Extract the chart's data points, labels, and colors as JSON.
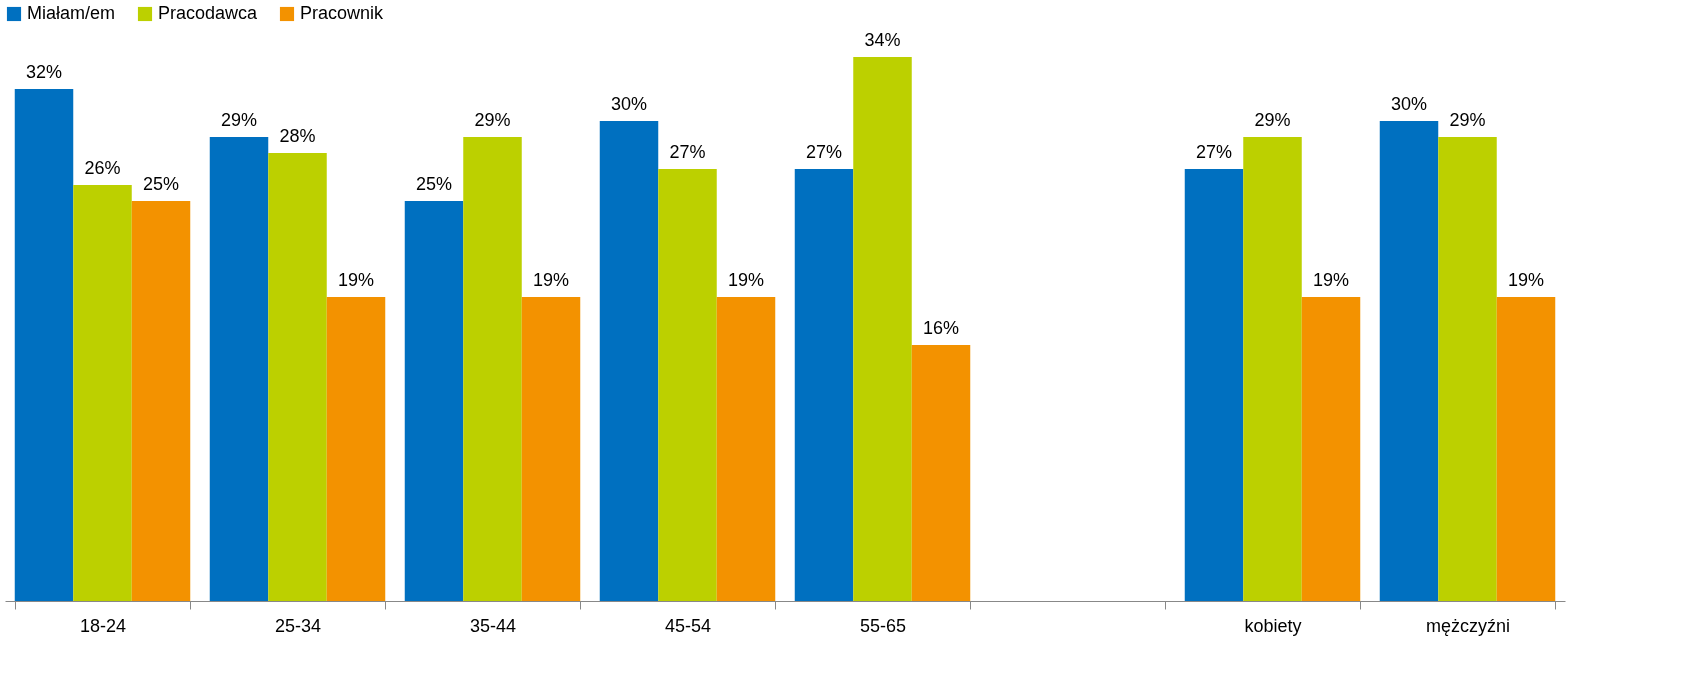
{
  "chart_data": {
    "type": "bar",
    "categories": [
      "18-24",
      "25-34",
      "35-44",
      "45-54",
      "55-65",
      null,
      "kobiety",
      "mężczyźni"
    ],
    "series": [
      {
        "name": "Miałam/em",
        "color": "#0070c0",
        "values": [
          32,
          29,
          25,
          30,
          27,
          null,
          27,
          30
        ],
        "value_labels": [
          "32%",
          "29%",
          "25%",
          "30%",
          "27%",
          null,
          "27%",
          "30%"
        ]
      },
      {
        "name": "Pracodawca",
        "color": "#bcd000",
        "values": [
          26,
          28,
          29,
          27,
          34,
          null,
          29,
          29
        ],
        "value_labels": [
          "26%",
          "28%",
          "29%",
          "27%",
          "34%",
          null,
          "29%",
          "29%"
        ]
      },
      {
        "name": "Pracownik",
        "color": "#f39200",
        "values": [
          25,
          19,
          19,
          19,
          16,
          null,
          19,
          19
        ],
        "value_labels": [
          "25%",
          "19%",
          "19%",
          "19%",
          "16%",
          null,
          "19%",
          "19%"
        ]
      }
    ],
    "legend": "top",
    "grid": false,
    "tick_labels": "x"
  }
}
